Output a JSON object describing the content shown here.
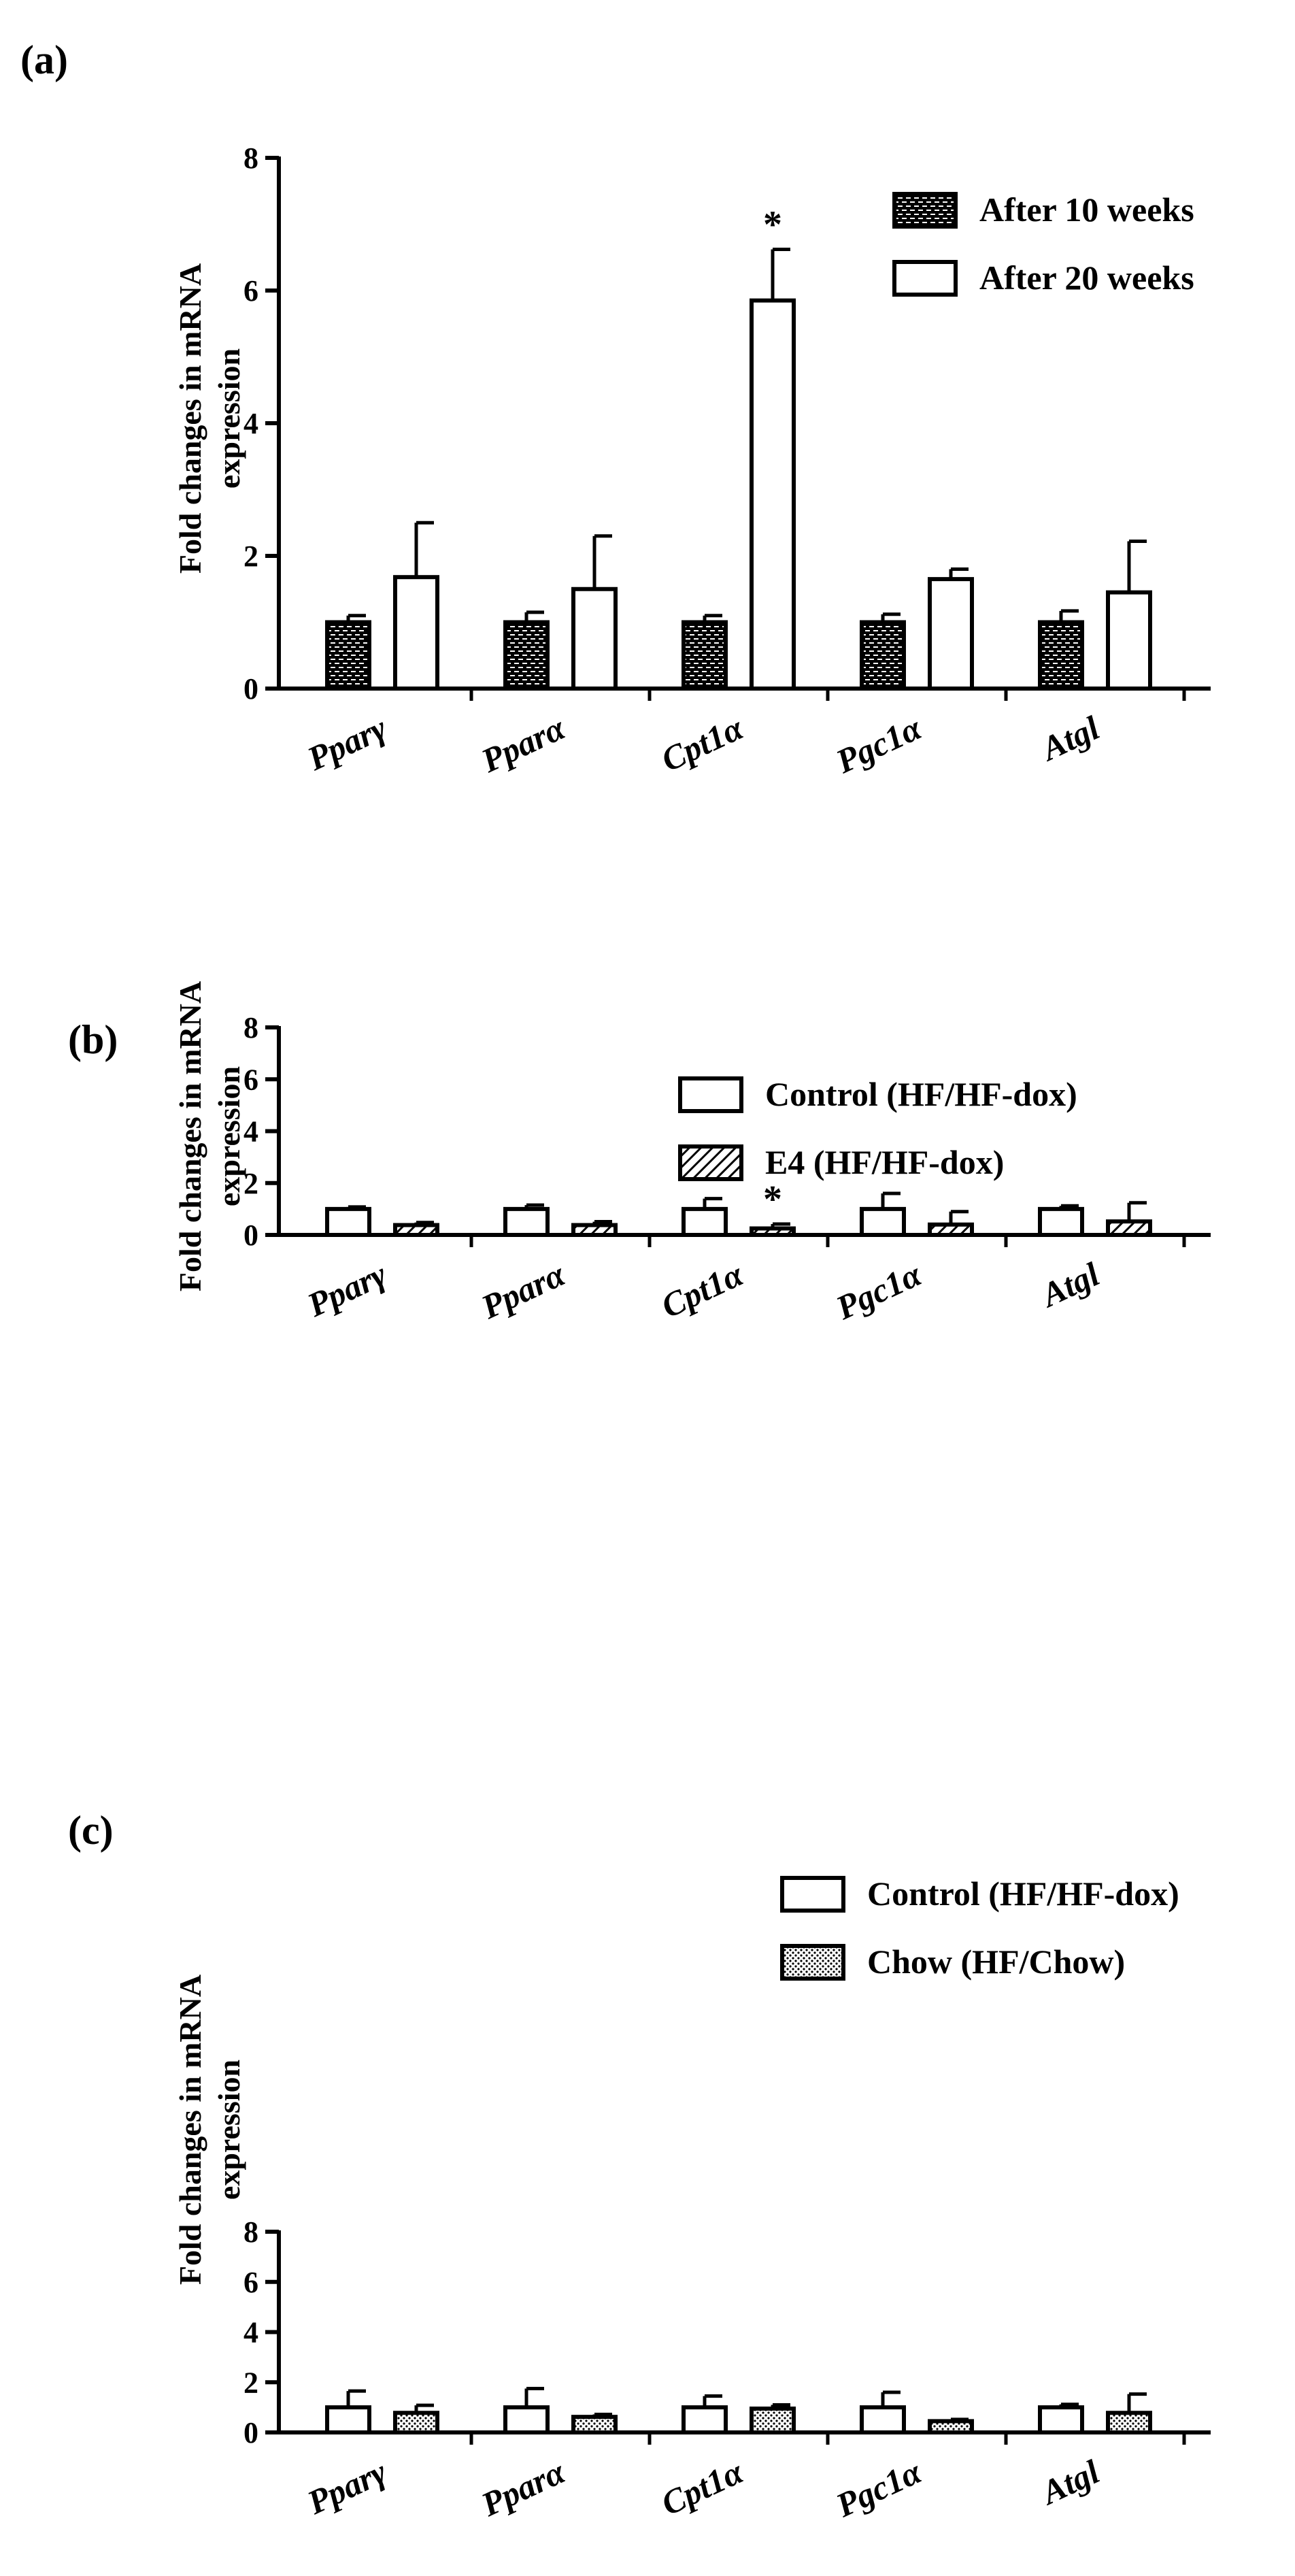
{
  "chart_data": [
    {
      "type": "bar",
      "panel_label": "(a)",
      "ylabel": [
        "Fold changes in mRNA",
        "expression"
      ],
      "xlabel": "",
      "ylim": [
        0,
        8
      ],
      "yticks": [
        "0",
        "2",
        "4",
        "6",
        "8"
      ],
      "categories": [
        "Pparγ",
        "Pparα",
        "Cpt1α",
        "Pgc1α",
        "Atgl"
      ],
      "series": [
        {
          "name": "After 10 weeks",
          "pattern": "brick",
          "values": [
            1.0,
            1.0,
            1.0,
            1.0,
            1.0
          ],
          "errors": [
            0.1,
            0.15,
            0.1,
            0.12,
            0.17
          ]
        },
        {
          "name": "After 20 weeks",
          "pattern": "white",
          "values": [
            1.68,
            1.5,
            5.85,
            1.65,
            1.45
          ],
          "errors": [
            0.82,
            0.8,
            0.77,
            0.15,
            0.77
          ]
        }
      ],
      "annotations": [
        {
          "text": "*",
          "category_index": 2,
          "series_index": 1
        }
      ],
      "legend_position": "top-right"
    },
    {
      "type": "bar",
      "panel_label": "(b)",
      "ylabel": [
        "Fold changes in mRNA",
        "expression"
      ],
      "xlabel": "",
      "ylim": [
        0,
        8
      ],
      "yticks": [
        "0",
        "2",
        "4",
        "6",
        "8"
      ],
      "categories": [
        "Pparγ",
        "Pparα",
        "Cpt1α",
        "Pgc1α",
        "Atgl"
      ],
      "series": [
        {
          "name": "Control (HF/HF-dox)",
          "pattern": "white",
          "values": [
            1.0,
            1.0,
            1.0,
            1.0,
            1.0
          ],
          "errors": [
            0.08,
            0.15,
            0.4,
            0.6,
            0.12
          ]
        },
        {
          "name": "E4 (HF/HF-dox)",
          "pattern": "hatch",
          "values": [
            0.38,
            0.38,
            0.25,
            0.4,
            0.52
          ],
          "errors": [
            0.1,
            0.13,
            0.17,
            0.5,
            0.72
          ]
        }
      ],
      "annotations": [
        {
          "text": "*",
          "category_index": 2,
          "series_index": 1
        }
      ],
      "legend_position": "top-right"
    },
    {
      "type": "bar",
      "panel_label": "(c)",
      "ylabel": [
        "Fold changes in mRNA",
        "expression"
      ],
      "xlabel": "",
      "ylim": [
        0,
        8
      ],
      "yticks": [
        "0",
        "2",
        "4",
        "6",
        "8"
      ],
      "categories": [
        "Pparγ",
        "Pparα",
        "Cpt1α",
        "Pgc1α",
        "Atgl"
      ],
      "series": [
        {
          "name": "Control (HF/HF-dox)",
          "pattern": "white",
          "values": [
            1.0,
            1.0,
            1.0,
            1.0,
            1.0
          ],
          "errors": [
            0.65,
            0.75,
            0.45,
            0.6,
            0.12
          ]
        },
        {
          "name": "Chow (HF/Chow)",
          "pattern": "dots",
          "values": [
            0.78,
            0.62,
            0.95,
            0.45,
            0.78
          ],
          "errors": [
            0.3,
            0.1,
            0.15,
            0.07,
            0.75
          ]
        }
      ],
      "annotations": [],
      "legend_position": "top-right"
    }
  ],
  "colors": {
    "ink": "#000000",
    "background": "#ffffff"
  }
}
